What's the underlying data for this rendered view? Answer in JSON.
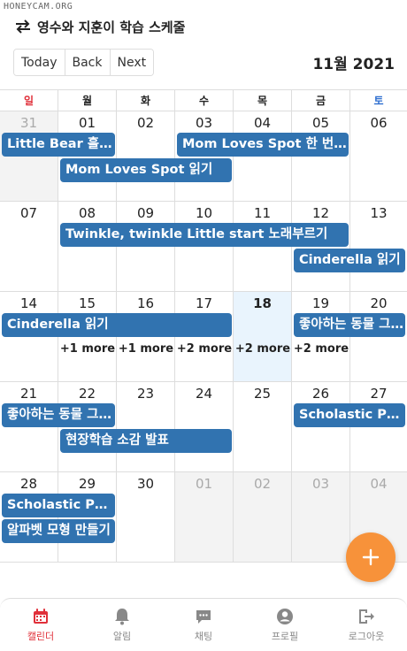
{
  "watermark": "HONEYCAM.ORG",
  "app_title": "영수와 지훈이 학습 스케줄",
  "toolbar": {
    "today": "Today",
    "back": "Back",
    "next": "Next"
  },
  "month_title": "11월 2021",
  "weekdays": [
    "일",
    "월",
    "화",
    "수",
    "목",
    "금",
    "토"
  ],
  "weeks": [
    {
      "days": [
        "31",
        "01",
        "02",
        "03",
        "04",
        "05",
        "06"
      ],
      "other": [
        true,
        false,
        false,
        false,
        false,
        false,
        false
      ]
    },
    {
      "days": [
        "07",
        "08",
        "09",
        "10",
        "11",
        "12",
        "13"
      ]
    },
    {
      "days": [
        "14",
        "15",
        "16",
        "17",
        "18",
        "19",
        "20"
      ],
      "today_index": 4
    },
    {
      "days": [
        "21",
        "22",
        "23",
        "24",
        "25",
        "26",
        "27"
      ]
    },
    {
      "days": [
        "28",
        "29",
        "30",
        "01",
        "02",
        "03",
        "04"
      ],
      "other": [
        false,
        false,
        false,
        true,
        true,
        true,
        true
      ]
    }
  ],
  "events": [
    {
      "week": 0,
      "start": 0,
      "span": 2,
      "row": 0,
      "title": "Little Bear 흘려듣기"
    },
    {
      "week": 0,
      "start": 3,
      "span": 3,
      "row": 0,
      "title": "Mom Loves Spot 한 번 더 듣기"
    },
    {
      "week": 0,
      "start": 1,
      "span": 3,
      "row": 1,
      "title": "Mom Loves Spot 읽기"
    },
    {
      "week": 1,
      "start": 1,
      "span": 5,
      "row": 0,
      "title": "Twinkle, twinkle Little start 노래부르기"
    },
    {
      "week": 1,
      "start": 5,
      "span": 2,
      "row": 1,
      "title": "Cinderella 읽기"
    },
    {
      "week": 2,
      "start": 0,
      "span": 4,
      "row": 0,
      "title": "Cinderella 읽기"
    },
    {
      "week": 2,
      "start": 5,
      "span": 2,
      "row": 0,
      "title": "좋아하는 동물 그리기"
    },
    {
      "week": 3,
      "start": 0,
      "span": 2,
      "row": 0,
      "title": "좋아하는 동물 그리기"
    },
    {
      "week": 3,
      "start": 5,
      "span": 2,
      "row": 0,
      "title": "Scholastic Phonics"
    },
    {
      "week": 3,
      "start": 1,
      "span": 3,
      "row": 1,
      "title": "현장학습 소감 발표"
    },
    {
      "week": 4,
      "start": 0,
      "span": 2,
      "row": 0,
      "title": "Scholastic Phonics"
    },
    {
      "week": 4,
      "start": 0,
      "span": 2,
      "row": 1,
      "title": "알파벳 모형 만들기"
    }
  ],
  "more_links": [
    {
      "week": 2,
      "col": 1,
      "label": "+1 more"
    },
    {
      "week": 2,
      "col": 2,
      "label": "+1 more"
    },
    {
      "week": 2,
      "col": 3,
      "label": "+2 more"
    },
    {
      "week": 2,
      "col": 4,
      "label": "+2 more"
    },
    {
      "week": 2,
      "col": 5,
      "label": "+2 more"
    }
  ],
  "nav": [
    {
      "label": "캘린더",
      "icon": "calendar-icon",
      "active": true
    },
    {
      "label": "알림",
      "icon": "bell-icon"
    },
    {
      "label": "채팅",
      "icon": "chat-icon"
    },
    {
      "label": "프로필",
      "icon": "profile-icon"
    },
    {
      "label": "로그아웃",
      "icon": "logout-icon"
    }
  ],
  "colors": {
    "event": "#3173b0",
    "fab": "#f7923a",
    "today_bg": "#e9f4fd",
    "sunday": "#e0303a",
    "saturday": "#2f6fd0"
  }
}
